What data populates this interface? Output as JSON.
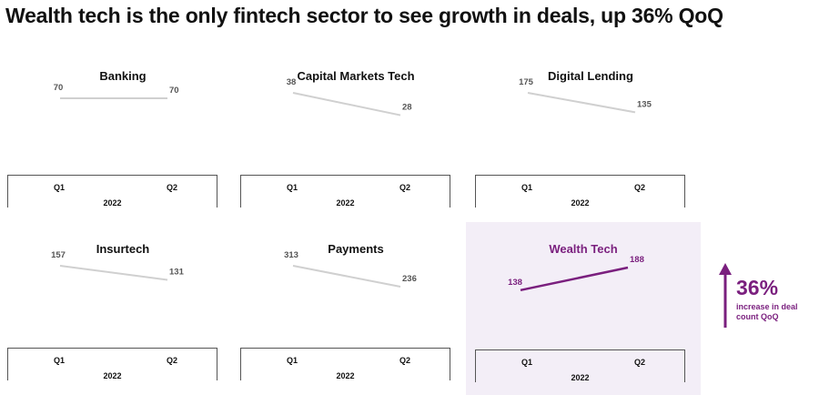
{
  "title": "Wealth tech is the only fintech sector to see growth in deals, up 36% QoQ",
  "colors": {
    "highlight": "#7a1f7e",
    "neutral_line": "#d0d0d0",
    "highlight_bg": "#f3eef7"
  },
  "chart_data": [
    {
      "type": "line",
      "title": "Banking",
      "categories": [
        "Q1",
        "Q2"
      ],
      "xlabel": "2022",
      "values": [
        70,
        70
      ],
      "highlight": false
    },
    {
      "type": "line",
      "title": "Capital Markets Tech",
      "categories": [
        "Q1",
        "Q2"
      ],
      "xlabel": "2022",
      "values": [
        38,
        28
      ],
      "highlight": false
    },
    {
      "type": "line",
      "title": "Digital Lending",
      "categories": [
        "Q1",
        "Q2"
      ],
      "xlabel": "2022",
      "values": [
        175,
        135
      ],
      "highlight": false
    },
    {
      "type": "line",
      "title": "Insurtech",
      "categories": [
        "Q1",
        "Q2"
      ],
      "xlabel": "2022",
      "values": [
        157,
        131
      ],
      "highlight": false
    },
    {
      "type": "line",
      "title": "Payments",
      "categories": [
        "Q1",
        "Q2"
      ],
      "xlabel": "2022",
      "values": [
        313,
        236
      ],
      "highlight": false
    },
    {
      "type": "line",
      "title": "Wealth Tech",
      "categories": [
        "Q1",
        "Q2"
      ],
      "xlabel": "2022",
      "values": [
        138,
        188
      ],
      "highlight": true
    }
  ],
  "callout": {
    "value": "36%",
    "text": "increase in deal count QoQ",
    "icon": "up-arrow-icon"
  }
}
